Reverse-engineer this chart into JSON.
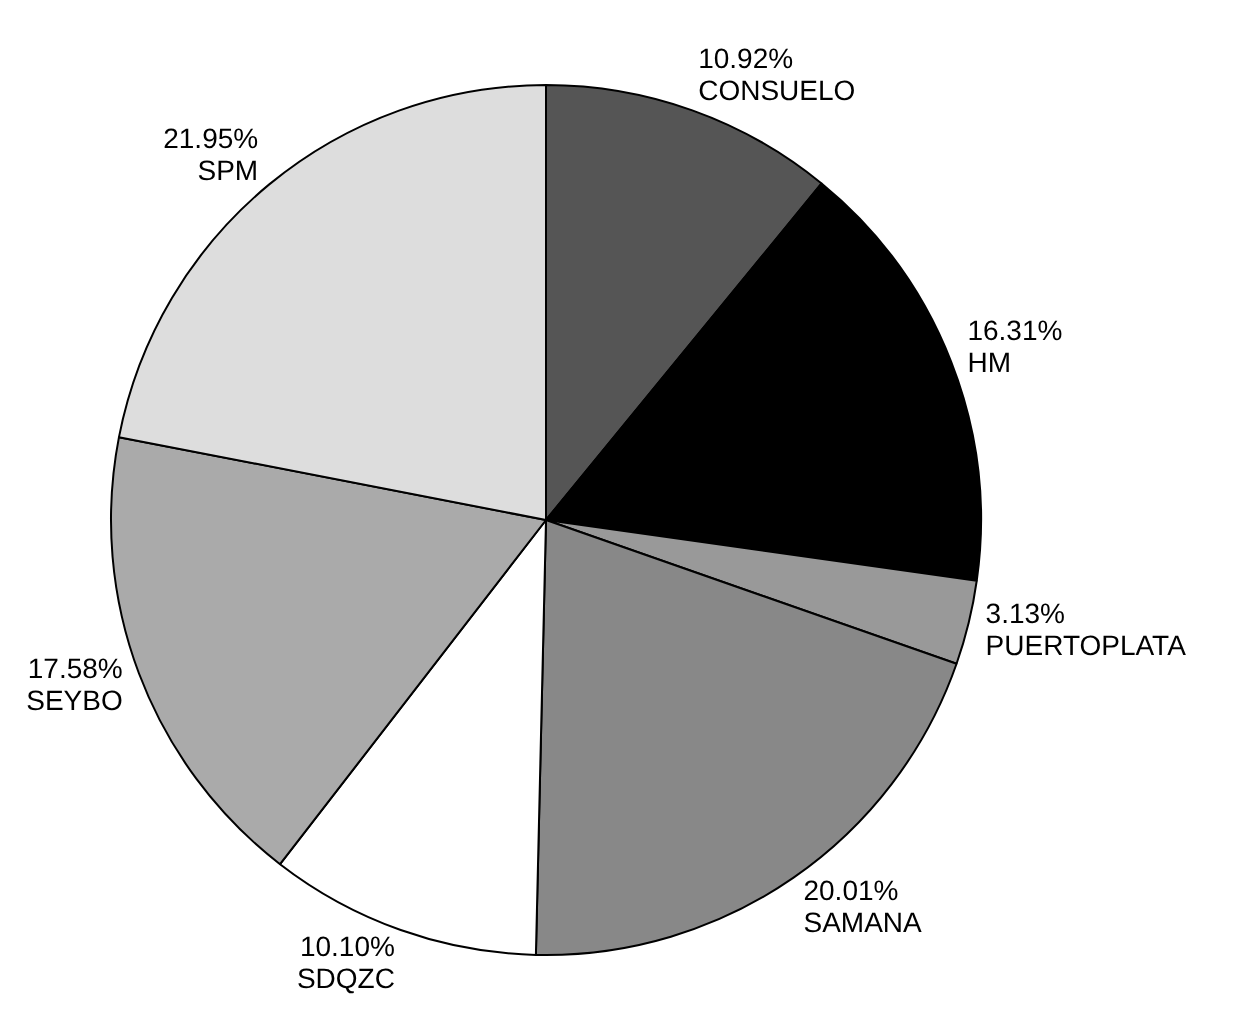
{
  "chart_data": {
    "type": "pie",
    "categories": [
      "CONSUELO",
      "HM",
      "PUERTOPLATA",
      "SAMANA",
      "SDQZC",
      "SEYBO",
      "SPM"
    ],
    "values": [
      10.92,
      16.31,
      3.13,
      20.01,
      10.1,
      17.58,
      21.95
    ],
    "value_labels": [
      "10.92%",
      "16.31%",
      "3.13%",
      "20.01%",
      "10.10%",
      "17.58%",
      "21.95%"
    ],
    "colors": [
      "#555555",
      "#000000",
      "#999999",
      "#888888",
      "#ffffff",
      "#aaaaaa",
      "#dddddd"
    ],
    "legend": false
  }
}
